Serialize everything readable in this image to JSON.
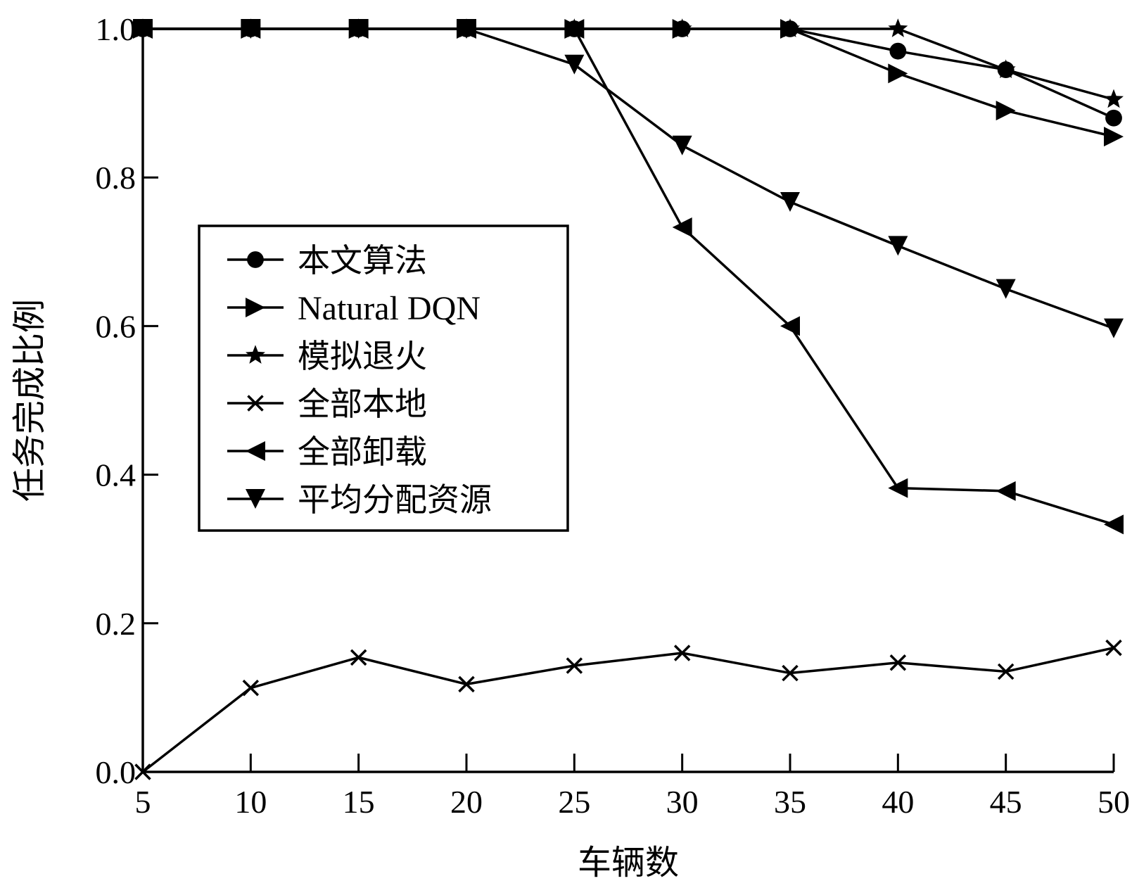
{
  "chart_data": {
    "type": "line",
    "xlabel": "车辆数",
    "ylabel": "任务完成比例",
    "x": [
      5,
      10,
      15,
      20,
      25,
      30,
      35,
      40,
      45,
      50
    ],
    "xlim": [
      5,
      50
    ],
    "ylim": [
      0,
      1.0
    ],
    "x_ticks": [
      "5",
      "10",
      "15",
      "20",
      "25",
      "30",
      "35",
      "40",
      "45",
      "50"
    ],
    "y_ticks": [
      "0.0",
      "0.2",
      "0.4",
      "0.6",
      "0.8",
      "1.0"
    ],
    "grid": false,
    "legend_position": "center-left",
    "series": [
      {
        "name": "本文算法",
        "marker": "circle",
        "values": [
          1.0,
          1.0,
          1.0,
          1.0,
          1.0,
          1.0,
          1.0,
          0.97,
          0.945,
          0.88
        ]
      },
      {
        "name": "Natural DQN",
        "marker": "triangle-right",
        "values": [
          1.0,
          1.0,
          1.0,
          1.0,
          1.0,
          1.0,
          1.0,
          0.94,
          0.89,
          0.855
        ]
      },
      {
        "name": "模拟退火",
        "marker": "star",
        "values": [
          1.0,
          1.0,
          1.0,
          1.0,
          1.0,
          1.0,
          1.0,
          1.0,
          0.945,
          0.905
        ]
      },
      {
        "name": "全部本地",
        "marker": "x",
        "values": [
          0.0,
          0.113,
          0.154,
          0.118,
          0.143,
          0.16,
          0.133,
          0.147,
          0.135,
          0.167
        ]
      },
      {
        "name": "全部卸载",
        "marker": "triangle-left",
        "values": [
          1.0,
          1.0,
          1.0,
          1.0,
          1.0,
          0.733,
          0.6,
          0.382,
          0.378,
          0.333
        ]
      },
      {
        "name": "平均分配资源",
        "marker": "triangle-down",
        "values": [
          1.0,
          1.0,
          1.0,
          1.0,
          0.952,
          0.843,
          0.767,
          0.708,
          0.65,
          0.597
        ]
      }
    ]
  }
}
